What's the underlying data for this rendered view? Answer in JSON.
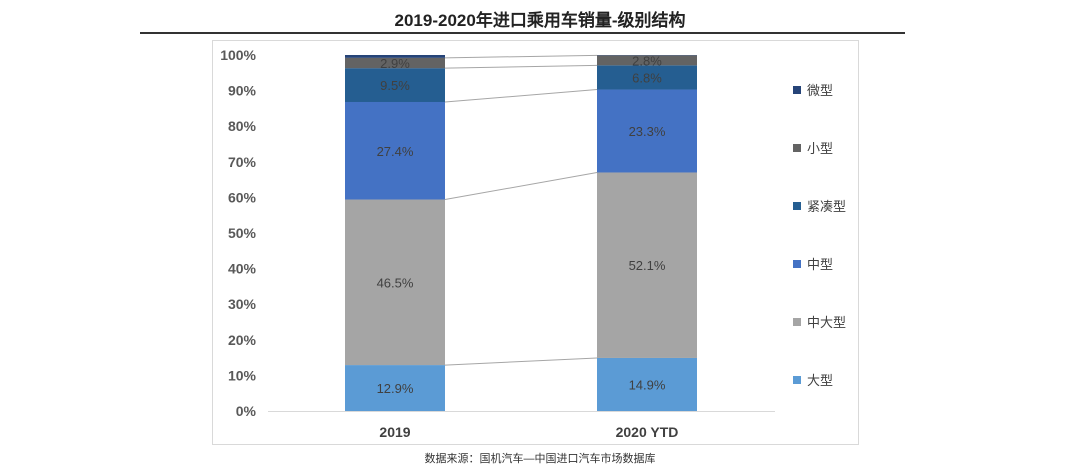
{
  "title": "2019-2020年进口乘用车销量-级别结构",
  "source": "数据来源：国机汽车—中国进口汽车市场数据库",
  "chart_data": {
    "type": "bar",
    "stacked": true,
    "percent": true,
    "categories": [
      "2019",
      "2020 YTD"
    ],
    "series": [
      {
        "name": "大型",
        "color": "#5b9bd5",
        "values": [
          12.9,
          14.9
        ],
        "labels": [
          "12.9%",
          "14.9%"
        ]
      },
      {
        "name": "中大型",
        "color": "#a5a5a5",
        "values": [
          46.5,
          52.1
        ],
        "labels": [
          "46.5%",
          "52.1%"
        ]
      },
      {
        "name": "中型",
        "color": "#4472c4",
        "values": [
          27.4,
          23.3
        ],
        "labels": [
          "27.4%",
          "23.3%"
        ]
      },
      {
        "name": "紧凑型",
        "color": "#255e91",
        "values": [
          9.5,
          6.8
        ],
        "labels": [
          "9.5%",
          "6.8%"
        ]
      },
      {
        "name": "小型",
        "color": "#636363",
        "values": [
          2.9,
          2.8
        ],
        "labels": [
          "2.9%",
          "2.8%"
        ]
      },
      {
        "name": "微型",
        "color": "#264478",
        "values": [
          0.8,
          0.1
        ],
        "labels": [
          "",
          ""
        ]
      }
    ],
    "legend_order": [
      "微型",
      "小型",
      "紧凑型",
      "中型",
      "中大型",
      "大型"
    ],
    "ylim": [
      0,
      100
    ],
    "yticks": [
      "0%",
      "10%",
      "20%",
      "30%",
      "40%",
      "50%",
      "60%",
      "70%",
      "80%",
      "90%",
      "100%"
    ],
    "legend_position": "right",
    "grid": false
  }
}
